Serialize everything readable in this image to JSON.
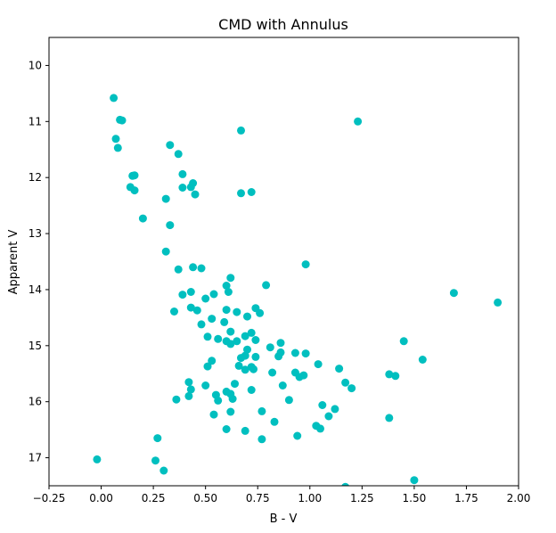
{
  "chart_data": {
    "type": "scatter",
    "title": "CMD with Annulus",
    "xlabel": "B - V",
    "ylabel": "Apparent V",
    "xlim": [
      -0.25,
      2.0
    ],
    "ylim": [
      17.5,
      9.5
    ],
    "y_inverted": true,
    "grid": false,
    "marker_color": "#00bfbf",
    "x_ticks": [
      -0.25,
      0.0,
      0.25,
      0.5,
      0.75,
      1.0,
      1.25,
      1.5,
      1.75,
      2.0
    ],
    "x_tick_labels": [
      "−0.25",
      "0.00",
      "0.25",
      "0.50",
      "0.75",
      "1.00",
      "1.25",
      "1.50",
      "1.75",
      "2.00"
    ],
    "y_ticks": [
      10,
      11,
      12,
      13,
      14,
      15,
      16,
      17
    ],
    "y_tick_labels": [
      "10",
      "11",
      "12",
      "13",
      "14",
      "15",
      "16",
      "17"
    ],
    "points": [
      [
        0.06,
        10.58
      ],
      [
        0.09,
        10.97
      ],
      [
        0.1,
        10.98
      ],
      [
        0.07,
        11.31
      ],
      [
        0.08,
        11.47
      ],
      [
        0.15,
        11.97
      ],
      [
        0.16,
        11.96
      ],
      [
        0.14,
        12.17
      ],
      [
        0.16,
        12.23
      ],
      [
        0.2,
        12.73
      ],
      [
        0.33,
        11.42
      ],
      [
        0.37,
        11.58
      ],
      [
        0.39,
        11.94
      ],
      [
        0.31,
        12.38
      ],
      [
        0.39,
        12.18
      ],
      [
        0.44,
        12.1
      ],
      [
        0.43,
        12.17
      ],
      [
        0.45,
        12.3
      ],
      [
        0.33,
        12.85
      ],
      [
        0.31,
        13.32
      ],
      [
        0.67,
        11.16
      ],
      [
        0.67,
        12.28
      ],
      [
        0.72,
        12.26
      ],
      [
        1.23,
        11.0
      ],
      [
        0.37,
        13.64
      ],
      [
        0.44,
        13.6
      ],
      [
        0.48,
        13.62
      ],
      [
        0.39,
        14.09
      ],
      [
        0.43,
        14.04
      ],
      [
        0.35,
        14.39
      ],
      [
        0.43,
        14.32
      ],
      [
        0.46,
        14.37
      ],
      [
        0.5,
        14.16
      ],
      [
        0.54,
        14.08
      ],
      [
        0.62,
        13.79
      ],
      [
        0.6,
        13.93
      ],
      [
        0.61,
        14.04
      ],
      [
        0.79,
        13.92
      ],
      [
        0.98,
        13.55
      ],
      [
        0.53,
        14.52
      ],
      [
        0.48,
        14.62
      ],
      [
        0.51,
        14.84
      ],
      [
        0.56,
        14.88
      ],
      [
        0.59,
        14.58
      ],
      [
        0.6,
        14.36
      ],
      [
        0.65,
        14.4
      ],
      [
        0.7,
        14.48
      ],
      [
        0.74,
        14.33
      ],
      [
        0.76,
        14.42
      ],
      [
        0.62,
        14.75
      ],
      [
        0.6,
        14.92
      ],
      [
        0.62,
        14.97
      ],
      [
        0.65,
        14.92
      ],
      [
        0.69,
        14.83
      ],
      [
        0.72,
        14.77
      ],
      [
        0.74,
        14.9
      ],
      [
        0.81,
        15.03
      ],
      [
        0.85,
        15.19
      ],
      [
        0.86,
        14.95
      ],
      [
        0.86,
        15.12
      ],
      [
        0.93,
        15.13
      ],
      [
        0.98,
        15.14
      ],
      [
        0.51,
        15.37
      ],
      [
        0.53,
        15.27
      ],
      [
        0.66,
        15.36
      ],
      [
        0.67,
        15.22
      ],
      [
        0.69,
        15.18
      ],
      [
        0.72,
        15.38
      ],
      [
        0.73,
        15.42
      ],
      [
        0.7,
        15.07
      ],
      [
        0.74,
        15.2
      ],
      [
        0.69,
        15.43
      ],
      [
        0.55,
        15.88
      ],
      [
        0.6,
        15.82
      ],
      [
        0.62,
        15.86
      ],
      [
        0.64,
        15.68
      ],
      [
        0.56,
        15.98
      ],
      [
        0.63,
        15.95
      ],
      [
        0.72,
        15.79
      ],
      [
        0.77,
        16.17
      ],
      [
        0.82,
        15.48
      ],
      [
        0.87,
        15.71
      ],
      [
        0.93,
        15.48
      ],
      [
        0.95,
        15.56
      ],
      [
        0.97,
        15.53
      ],
      [
        0.9,
        15.97
      ],
      [
        0.83,
        16.36
      ],
      [
        0.62,
        16.18
      ],
      [
        0.54,
        16.23
      ],
      [
        0.6,
        16.49
      ],
      [
        0.69,
        16.52
      ],
      [
        0.77,
        16.67
      ],
      [
        0.94,
        16.61
      ],
      [
        1.03,
        16.43
      ],
      [
        1.05,
        16.48
      ],
      [
        1.04,
        15.33
      ],
      [
        1.06,
        16.06
      ],
      [
        1.09,
        16.26
      ],
      [
        1.12,
        16.13
      ],
      [
        1.14,
        15.41
      ],
      [
        1.17,
        15.66
      ],
      [
        1.2,
        15.76
      ],
      [
        1.38,
        15.51
      ],
      [
        1.41,
        15.54
      ],
      [
        1.38,
        16.29
      ],
      [
        1.45,
        14.92
      ],
      [
        1.54,
        15.25
      ],
      [
        1.69,
        14.06
      ],
      [
        1.9,
        14.23
      ],
      [
        0.42,
        15.65
      ],
      [
        0.43,
        15.78
      ],
      [
        0.42,
        15.9
      ],
      [
        0.36,
        15.96
      ],
      [
        0.5,
        15.71
      ],
      [
        -0.02,
        17.03
      ],
      [
        0.26,
        17.05
      ],
      [
        0.27,
        16.65
      ],
      [
        0.3,
        17.23
      ],
      [
        1.5,
        17.4
      ],
      [
        1.17,
        17.52
      ]
    ]
  }
}
